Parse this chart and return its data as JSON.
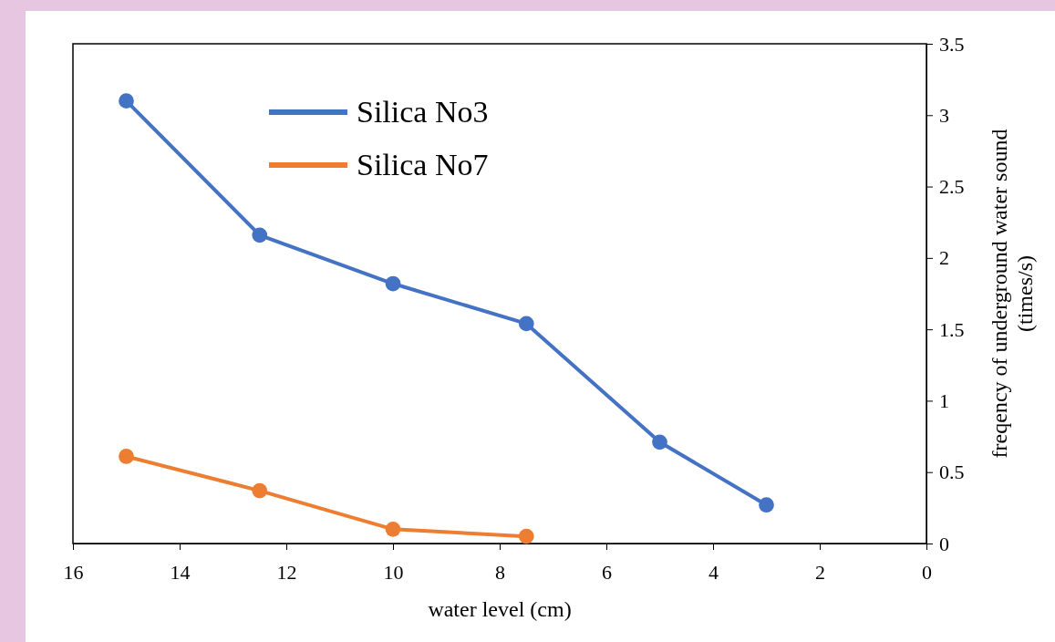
{
  "chart_data": {
    "type": "line",
    "xlabel": "water level (cm)",
    "ylabel": "freqency of underground water sound (times/s)",
    "xlim": [
      16,
      0
    ],
    "xticks": [
      16,
      14,
      12,
      10,
      8,
      6,
      4,
      2,
      0
    ],
    "ylim": [
      0,
      3.5
    ],
    "yticks": [
      0,
      0.5,
      1,
      1.5,
      2,
      2.5,
      3,
      3.5
    ],
    "grid": false,
    "legend": "top left",
    "marker": "circle",
    "line_style": "solid",
    "series": [
      {
        "name": "Silica No3",
        "color": "#4472c4",
        "x": [
          15,
          12.5,
          10,
          7.5,
          5,
          3
        ],
        "values": [
          3.1,
          2.16,
          1.82,
          1.54,
          0.71,
          0.27
        ]
      },
      {
        "name": "Silica No7",
        "color": "#ed7d31",
        "x": [
          15,
          12.5,
          10,
          7.5
        ],
        "values": [
          0.61,
          0.37,
          0.1,
          0.05
        ]
      }
    ]
  }
}
